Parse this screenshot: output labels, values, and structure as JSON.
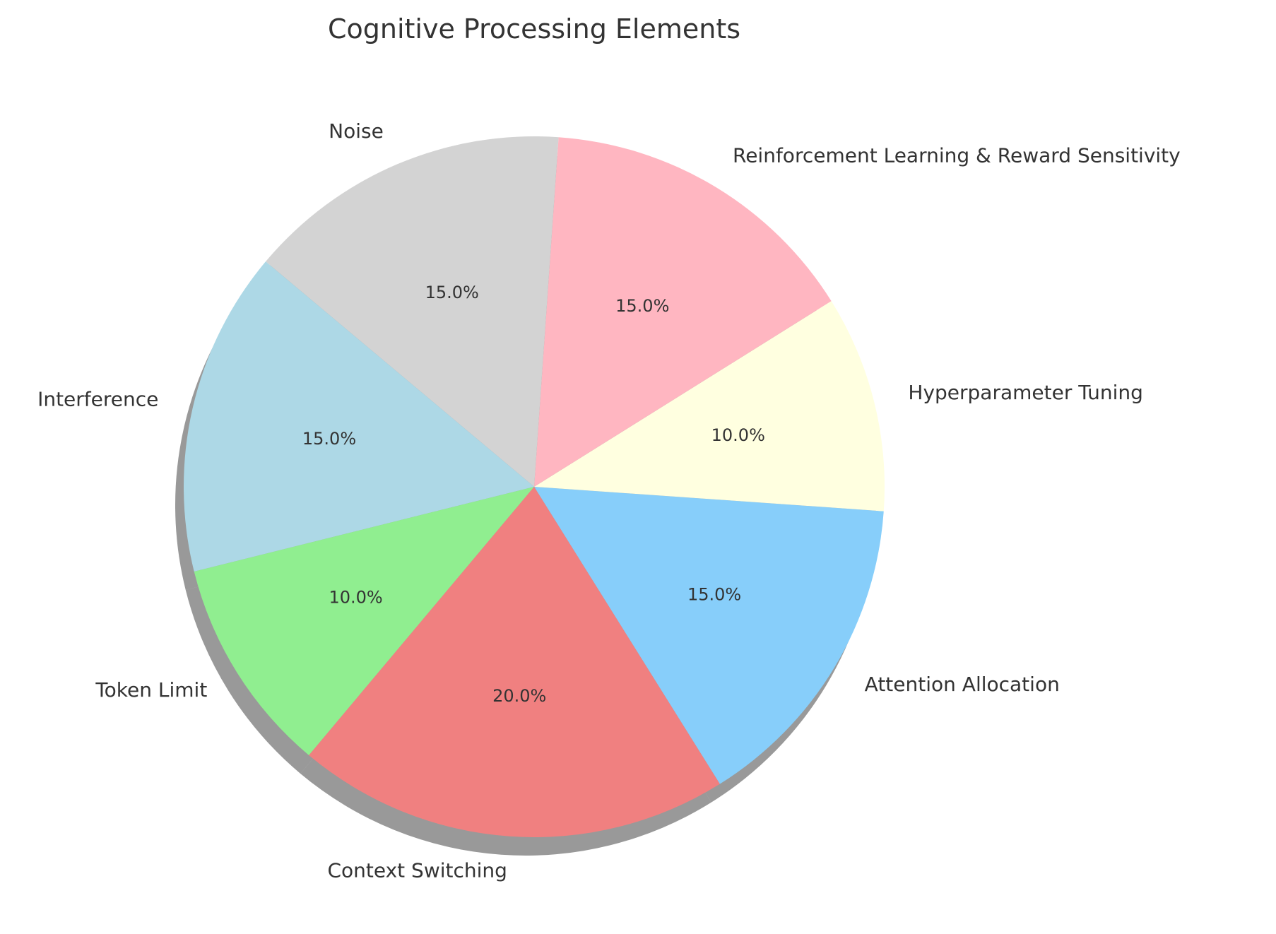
{
  "chart_data": {
    "type": "pie",
    "title": "Cognitive Processing Elements",
    "categories": [
      "Attention Allocation",
      "Hyperparameter Tuning",
      "Reinforcement Learning & Reward Sensitivity",
      "Noise",
      "Interference",
      "Token Limit",
      "Context Switching"
    ],
    "values": [
      15,
      10,
      15,
      15,
      15,
      10,
      20
    ],
    "percent_labels": [
      "15.0%",
      "10.0%",
      "15.0%",
      "15.0%",
      "15.0%",
      "10.0%",
      "20.0%"
    ],
    "colors": [
      "#87CEFA",
      "#FFFFE0",
      "#FFB6C1",
      "#D3D3D3",
      "#ADD8E6",
      "#90EE90",
      "#F08080"
    ],
    "start_angle_deg": -58,
    "direction": "counterclockwise",
    "shadow": true
  }
}
